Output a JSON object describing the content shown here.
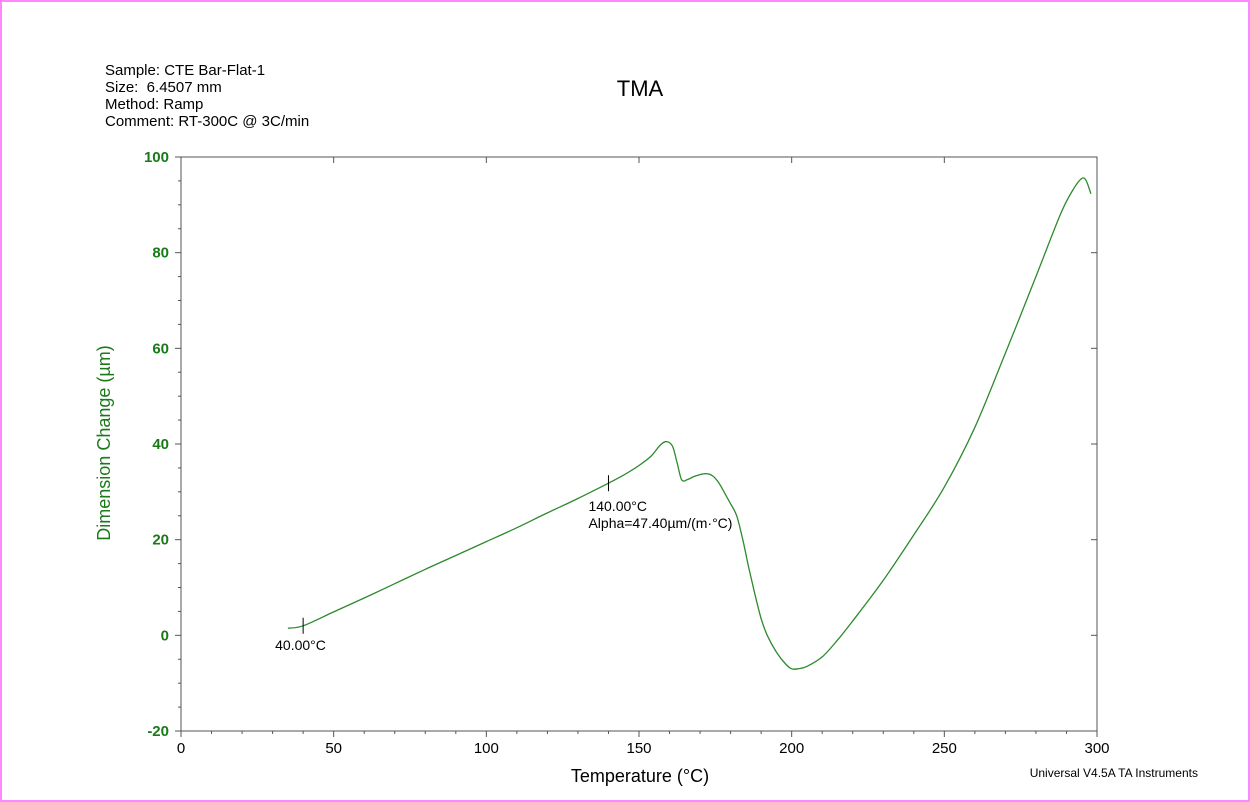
{
  "chart_data": {
    "type": "line",
    "title": "TMA",
    "xlabel": "Temperature (°C)",
    "ylabel": "Dimension Change (µm)",
    "xlim": [
      0,
      300
    ],
    "ylim": [
      -20,
      100
    ],
    "x_ticks": [
      "0",
      "50",
      "100",
      "150",
      "200",
      "250",
      "300"
    ],
    "y_ticks": [
      "-20",
      "0",
      "20",
      "40",
      "60",
      "80",
      "100"
    ],
    "grid": false,
    "series": [
      {
        "color": "#2d8a2d",
        "points": [
          [
            35,
            1.5
          ],
          [
            40,
            2.0
          ],
          [
            50,
            4.9
          ],
          [
            60,
            7.8
          ],
          [
            70,
            10.8
          ],
          [
            80,
            13.8
          ],
          [
            90,
            16.7
          ],
          [
            100,
            19.6
          ],
          [
            110,
            22.5
          ],
          [
            120,
            25.6
          ],
          [
            130,
            28.6
          ],
          [
            140,
            31.8
          ],
          [
            145,
            33.5
          ],
          [
            150,
            35.5
          ],
          [
            154,
            37.5
          ],
          [
            157,
            39.8
          ],
          [
            159,
            40.5
          ],
          [
            161,
            39.5
          ],
          [
            162.5,
            36.0
          ],
          [
            164,
            32.5
          ],
          [
            166,
            32.6
          ],
          [
            168,
            33.2
          ],
          [
            170,
            33.6
          ],
          [
            172,
            33.8
          ],
          [
            174,
            33.4
          ],
          [
            176,
            32.0
          ],
          [
            178,
            29.8
          ],
          [
            180,
            27.5
          ],
          [
            182,
            25.0
          ],
          [
            184,
            20.0
          ],
          [
            186,
            14.0
          ],
          [
            188,
            8.5
          ],
          [
            190,
            3.5
          ],
          [
            192,
            0.0
          ],
          [
            195,
            -3.5
          ],
          [
            198,
            -6.0
          ],
          [
            200,
            -7.0
          ],
          [
            202,
            -7.0
          ],
          [
            205,
            -6.5
          ],
          [
            210,
            -4.5
          ],
          [
            215,
            -1.0
          ],
          [
            220,
            3.0
          ],
          [
            230,
            11.5
          ],
          [
            240,
            21.0
          ],
          [
            250,
            31.0
          ],
          [
            260,
            43.5
          ],
          [
            270,
            59.0
          ],
          [
            280,
            75.0
          ],
          [
            288,
            88.0
          ],
          [
            292,
            93.0
          ],
          [
            295,
            95.5
          ],
          [
            296.5,
            95.0
          ],
          [
            298,
            92.3
          ]
        ]
      }
    ],
    "annotations": [
      {
        "x": 40,
        "y": 2.0,
        "text": "40.00°C"
      },
      {
        "x": 140,
        "y": 31.8,
        "text": "140.00°C",
        "text2": "Alpha=47.40µm/(m·°C)"
      }
    ]
  },
  "meta": {
    "sample": "Sample: CTE Bar-Flat-1",
    "size": "Size:  6.4507 mm",
    "method": "Method: Ramp",
    "comment": "Comment: RT-300C @ 3C/min"
  },
  "footer": "Universal V4.5A TA Instruments"
}
